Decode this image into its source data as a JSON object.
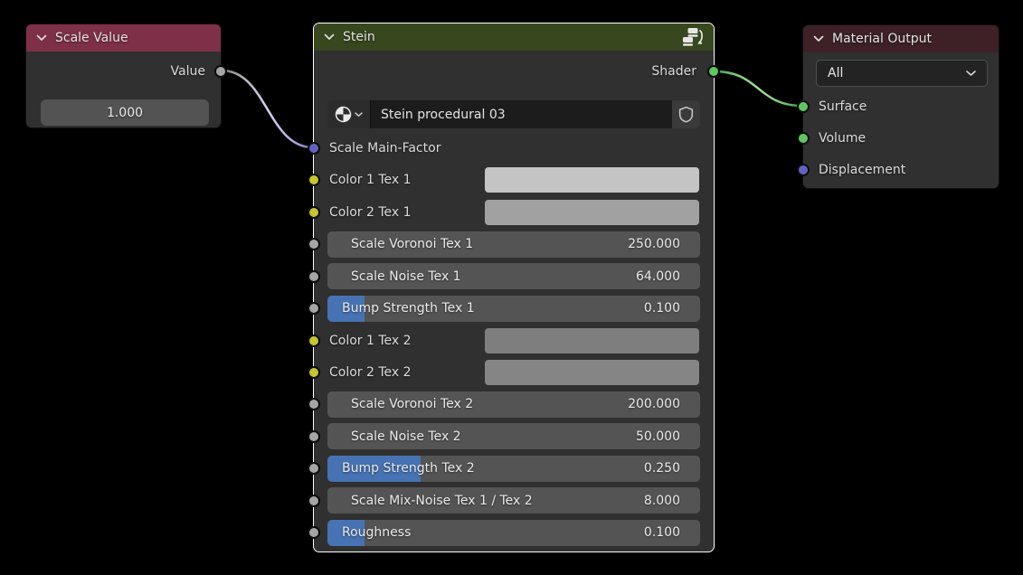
{
  "editor": {
    "background": "#000000"
  },
  "colors": {
    "node_body": "#303030",
    "header_input": "#7d3048",
    "header_group": "#37471e",
    "header_output": "#3d2127",
    "field_bg": "#545454",
    "slider_fill": "#4772b3",
    "sockets": {
      "float": "#a5a5a5",
      "color": "#c6c62d",
      "vector": "#6462c1",
      "shader": "#5fc75f"
    }
  },
  "nodes": {
    "scale_value": {
      "title": "Scale Value",
      "output_label": "Value",
      "value": "1.000"
    },
    "stein": {
      "title": "Stein",
      "output_label": "Shader",
      "material_name": "Stein procedural 03",
      "header_icons": [
        "node-group-icon"
      ],
      "selector_icons": [
        "material-sphere-icon",
        "chevron-down-icon",
        "shield-icon"
      ],
      "rows": [
        {
          "type": "plain",
          "label": "Scale Main-Factor",
          "socket": "vector"
        },
        {
          "type": "color",
          "label": "Color 1 Tex 1",
          "socket": "color",
          "swatch": "#c4c4c4"
        },
        {
          "type": "color",
          "label": "Color 2 Tex 1",
          "socket": "color",
          "swatch": "#a1a1a1"
        },
        {
          "type": "number",
          "label": "Scale Voronoi Tex 1",
          "value": "250.000",
          "socket": "float"
        },
        {
          "type": "number",
          "label": "Scale Noise Tex 1",
          "value": "64.000",
          "socket": "float"
        },
        {
          "type": "slider",
          "label": "Bump Strength Tex 1",
          "value": "0.100",
          "fill": 0.1,
          "socket": "float"
        },
        {
          "type": "color",
          "label": "Color 1 Tex 2",
          "socket": "color",
          "swatch": "#7e7e7e"
        },
        {
          "type": "color",
          "label": "Color 2 Tex 2",
          "socket": "color",
          "swatch": "#858585"
        },
        {
          "type": "number",
          "label": "Scale Voronoi Tex 2",
          "value": "200.000",
          "socket": "float"
        },
        {
          "type": "number",
          "label": "Scale Noise Tex 2",
          "value": "50.000",
          "socket": "float"
        },
        {
          "type": "slider",
          "label": "Bump Strength Tex 2",
          "value": "0.250",
          "fill": 0.25,
          "socket": "float"
        },
        {
          "type": "number",
          "label": "Scale Mix-Noise Tex 1 / Tex 2",
          "value": "8.000",
          "socket": "float"
        },
        {
          "type": "slider",
          "label": "Roughness",
          "value": "0.100",
          "fill": 0.1,
          "socket": "float"
        }
      ]
    },
    "material_output": {
      "title": "Material Output",
      "target_value": "All",
      "inputs": [
        {
          "label": "Surface",
          "socket": "shader"
        },
        {
          "label": "Volume",
          "socket": "shader"
        },
        {
          "label": "Displacement",
          "socket": "vector"
        }
      ]
    }
  },
  "wires": [
    {
      "name": "value-to-scale-main-factor",
      "start_color": "#a8a8a8",
      "mid_color": "#d8d6ee",
      "end_color": "#a5a2e6"
    },
    {
      "name": "shader-to-surface",
      "start_color": "#63c763",
      "mid_color": "#a6e3a0",
      "end_color": "#63c763"
    }
  ]
}
